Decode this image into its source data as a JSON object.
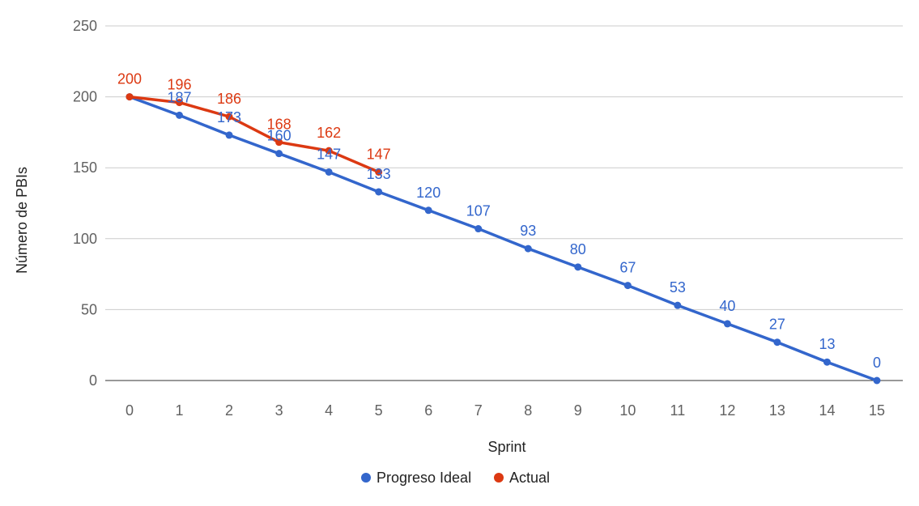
{
  "chart_data": {
    "type": "line",
    "title": "",
    "xlabel": "Sprint",
    "ylabel": "Número de PBIs",
    "x": [
      0,
      1,
      2,
      3,
      4,
      5,
      6,
      7,
      8,
      9,
      10,
      11,
      12,
      13,
      14,
      15
    ],
    "x_tick_labels": [
      "0",
      "1",
      "2",
      "3",
      "4",
      "5",
      "6",
      "7",
      "8",
      "9",
      "10",
      "11",
      "12",
      "13",
      "14",
      "15"
    ],
    "ylim": [
      0,
      250
    ],
    "y_ticks": [
      0,
      50,
      100,
      150,
      200,
      250
    ],
    "y_tick_labels": [
      "0",
      "50",
      "100",
      "150",
      "200",
      "250"
    ],
    "grid": true,
    "legend_position": "bottom",
    "series": [
      {
        "name": "Progreso Ideal",
        "color": "#3366cc",
        "x": [
          0,
          1,
          2,
          3,
          4,
          5,
          6,
          7,
          8,
          9,
          10,
          11,
          12,
          13,
          14,
          15
        ],
        "values": [
          200,
          187,
          173,
          160,
          147,
          133,
          120,
          107,
          93,
          80,
          67,
          53,
          40,
          27,
          13,
          0
        ],
        "labels": [
          "",
          "187",
          "173",
          "160",
          "147",
          "133",
          "120",
          "107",
          "93",
          "80",
          "67",
          "53",
          "40",
          "27",
          "13",
          "0"
        ]
      },
      {
        "name": "Actual",
        "color": "#dc3912",
        "x": [
          0,
          1,
          2,
          3,
          4,
          5
        ],
        "values": [
          200,
          196,
          186,
          168,
          162,
          147
        ],
        "labels": [
          "200",
          "196",
          "186",
          "168",
          "162",
          "147"
        ]
      }
    ]
  }
}
